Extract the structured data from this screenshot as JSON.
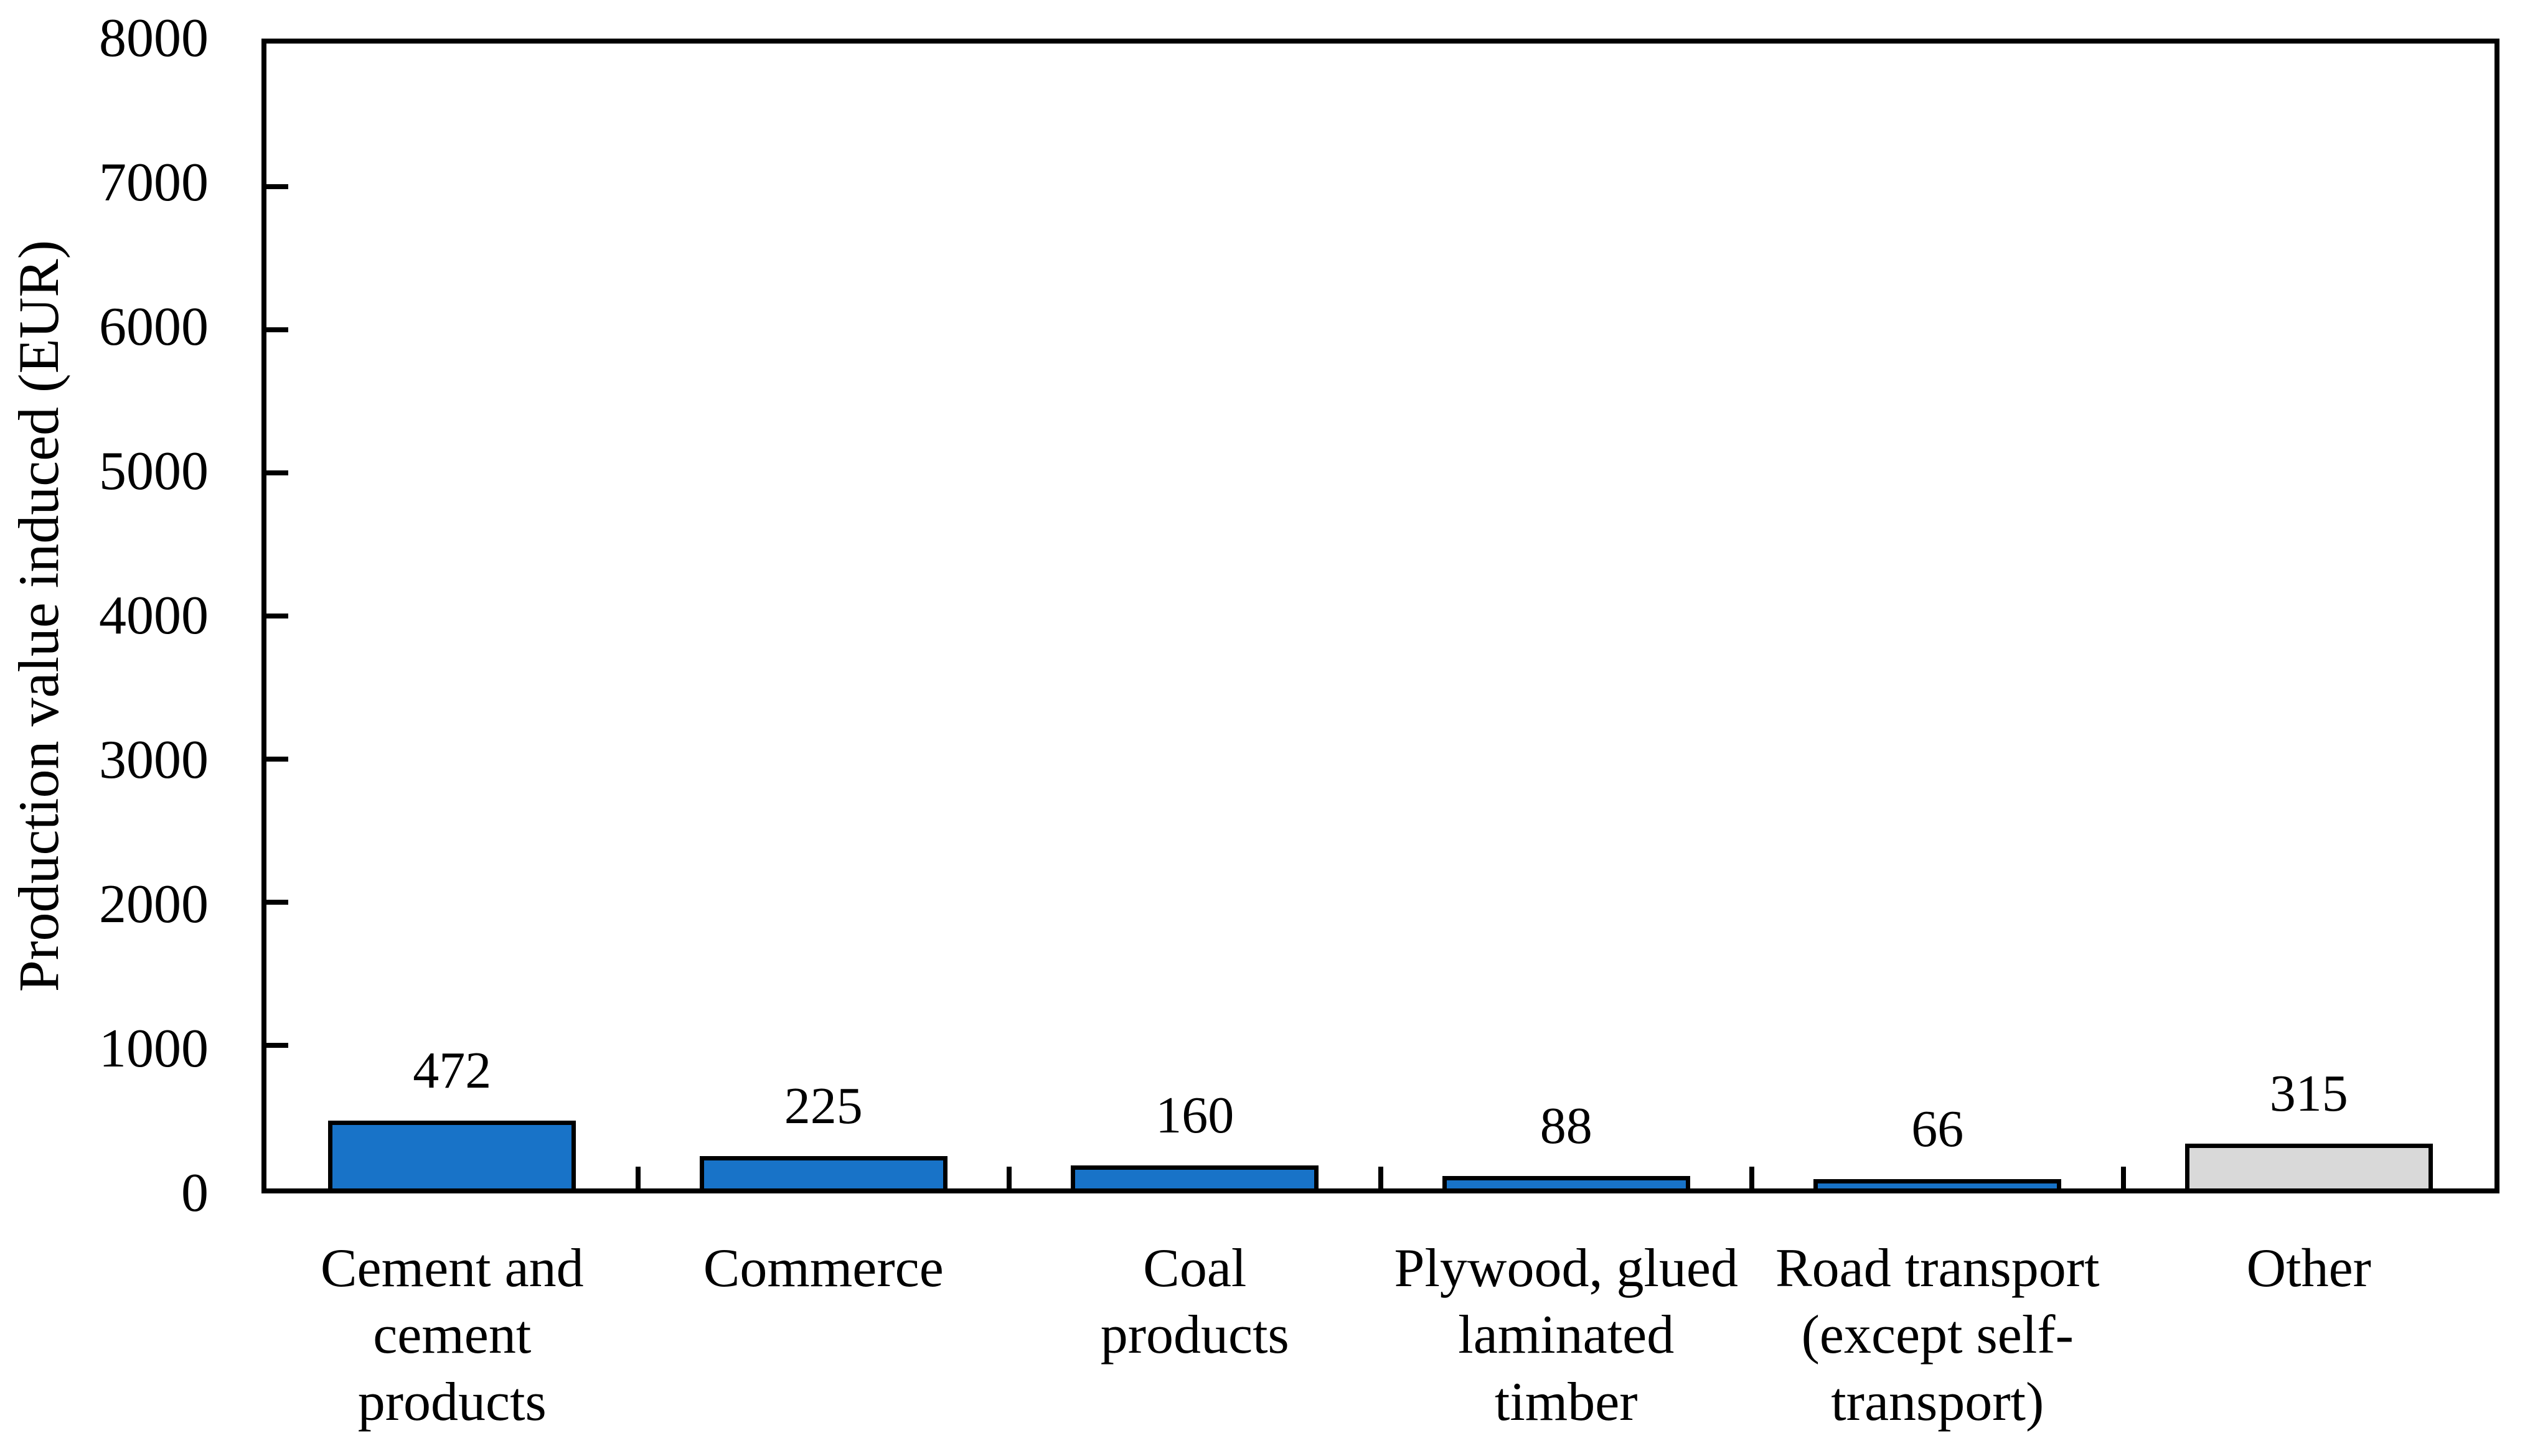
{
  "chart_data": {
    "type": "bar",
    "title": "",
    "xlabel": "",
    "ylabel": "Production value induced (EUR)",
    "categories": [
      "Cement and\ncement\nproducts",
      "Commerce",
      "Coal\nproducts",
      "Plywood, glued\nlaminated\ntimber",
      "Road transport\n(except self-\ntransport)",
      "Other"
    ],
    "values": [
      472,
      225,
      160,
      88,
      66,
      315
    ],
    "data_labels": [
      "472",
      "225",
      "160",
      "88",
      "66",
      "315"
    ],
    "bar_colors": [
      "#1873C8",
      "#1873C8",
      "#1873C8",
      "#1873C8",
      "#1873C8",
      "#D9D9D9"
    ],
    "bar_outline_color": "#000000",
    "axis_color": "#000000",
    "ylim": [
      0,
      8000
    ],
    "ytick_labels": [
      "0",
      "1000",
      "2000",
      "3000",
      "4000",
      "5000",
      "6000",
      "7000",
      "8000"
    ],
    "grid": "off",
    "legend": "none",
    "tick_style": "inside"
  }
}
